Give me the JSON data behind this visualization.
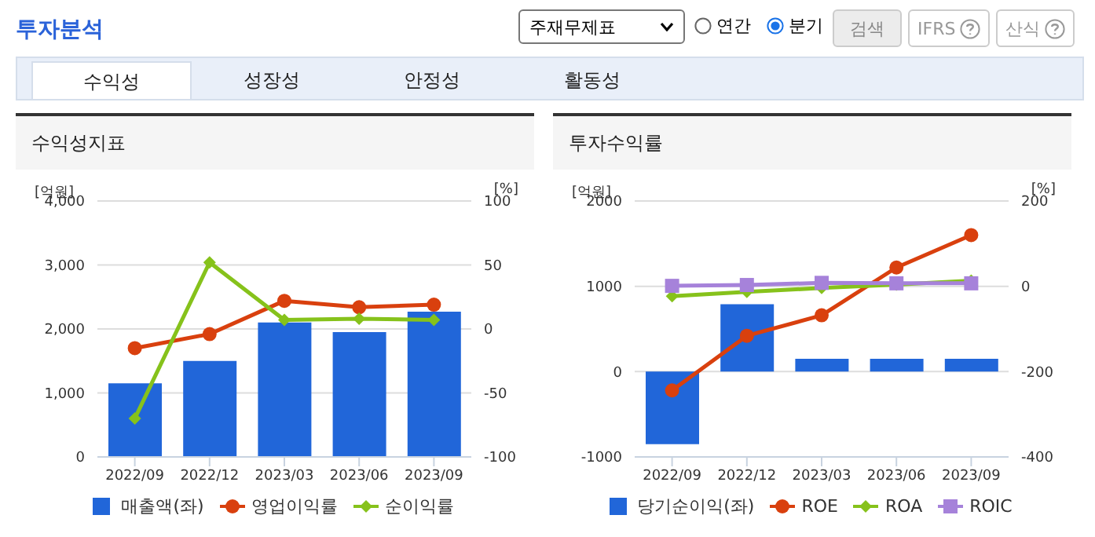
{
  "chart_data": [
    {
      "type": "bar",
      "title": "수익성지표",
      "ylabel": "[억원]",
      "y2label": "[%]",
      "annotations": [
        "투자분석",
        "주재무제표",
        "연간",
        "분기",
        "검색",
        "IFRS",
        "산식",
        "수익성",
        "성장성",
        "안정성",
        "활동성"
      ],
      "categories": [
        "2022/09",
        "2022/12",
        "2023/03",
        "2023/06",
        "2023/09"
      ],
      "series": [
        {
          "name": "매출액(좌)",
          "color": "#2166d9",
          "values": [
            1150,
            1500,
            2100,
            1950,
            2270
          ]
        },
        {
          "name": "영업이익률",
          "type": "line",
          "axis": "y2",
          "marker": "circle",
          "color": "#d9400e",
          "values": [
            -15,
            -4,
            22,
            17,
            19
          ]
        },
        {
          "name": "순이익률",
          "type": "line",
          "axis": "y2",
          "marker": "diamond",
          "color": "#86c21b",
          "values": [
            -70,
            52,
            7,
            8,
            7
          ]
        }
      ],
      "ylim": [
        0,
        4000
      ],
      "yticks": [
        0,
        {
          "value": 1000,
          "label": "1,000"
        },
        {
          "value": 2000,
          "label": "2,000"
        },
        {
          "value": 3000,
          "label": "3,000"
        },
        {
          "value": 4000,
          "label": "4,000"
        }
      ],
      "y2lim": [
        -100,
        100
      ],
      "y2ticks": [
        -100,
        -50,
        0,
        50,
        100
      ],
      "grid": "y",
      "legend": "bottom"
    },
    {
      "type": "bar",
      "title": "투자수익률",
      "ylabel": "[억원]",
      "y2label": "[%]",
      "categories": [
        "2022/09",
        "2022/12",
        "2023/03",
        "2023/06",
        "2023/09"
      ],
      "series": [
        {
          "name": "당기순이익(좌)",
          "color": "#2166d9",
          "values": [
            -850,
            790,
            150,
            150,
            150
          ]
        },
        {
          "name": "ROE",
          "type": "line",
          "axis": "y2",
          "marker": "circle",
          "color": "#d9400e",
          "values": [
            -244,
            -116,
            -68,
            44,
            120
          ]
        },
        {
          "name": "ROA",
          "type": "line",
          "axis": "y2",
          "marker": "diamond",
          "color": "#86c21b",
          "values": [
            -23,
            -13,
            -4,
            4,
            13
          ]
        },
        {
          "name": "ROIC",
          "type": "line",
          "axis": "y2",
          "marker": "square",
          "color": "#a682da",
          "values": [
            1,
            3,
            8,
            7,
            7
          ]
        }
      ],
      "ylim": [
        -1000,
        2000
      ],
      "yticks": [
        -1000,
        0,
        1000,
        2000
      ],
      "y2lim": [
        -400,
        200
      ],
      "y2ticks": [
        -400,
        -200,
        0,
        200
      ],
      "grid": "y",
      "legend": "bottom"
    }
  ]
}
